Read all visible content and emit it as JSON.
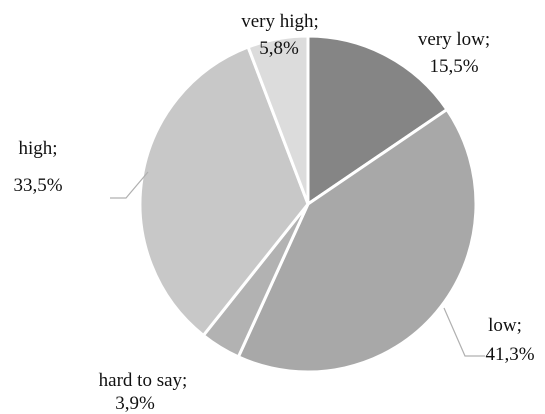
{
  "chart_data": {
    "type": "pie",
    "title": "",
    "start_angle_deg": 0,
    "direction": "clockwise",
    "slices": [
      {
        "name": "very low;",
        "value": 15.5,
        "value_label": "15,5%",
        "color": "#858585"
      },
      {
        "name": "low;",
        "value": 41.3,
        "value_label": "41,3%",
        "color": "#a8a8a8"
      },
      {
        "name": "hard to say;",
        "value": 3.9,
        "value_label": "3,9%",
        "color": "#b2b2b2"
      },
      {
        "name": "high;",
        "value": 33.5,
        "value_label": "33,5%",
        "color": "#c8c8c8"
      },
      {
        "name": "very high;",
        "value": 5.8,
        "value_label": "5,8%",
        "color": "#dcdcdc"
      }
    ]
  }
}
